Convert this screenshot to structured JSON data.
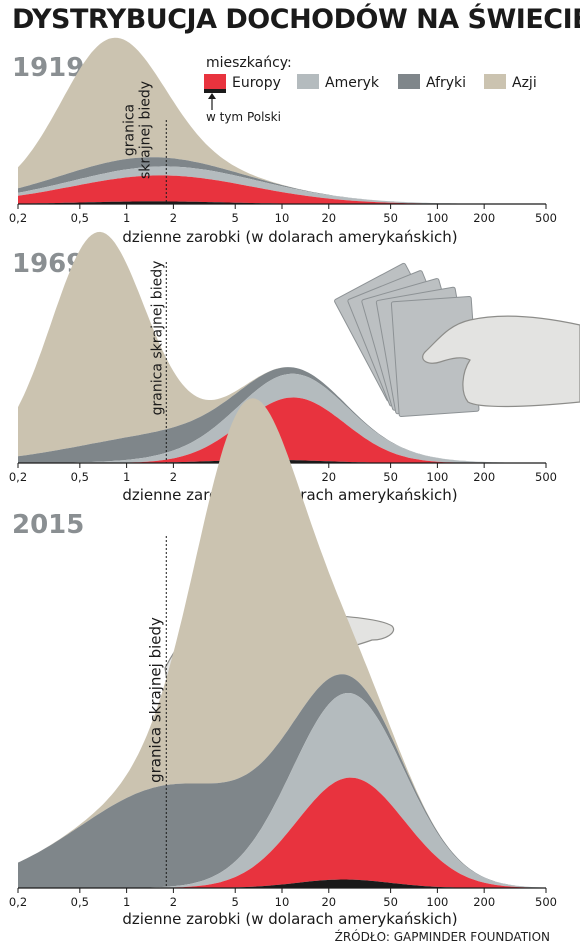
{
  "title": "DYSTRYBUCJA DOCHODÓW NA ŚWIECIE",
  "source": "ŹRÓDŁO: GAPMINDER FOUNDATION",
  "legend": {
    "heading": "mieszkańcy:",
    "items": [
      {
        "label": "Europy",
        "color": "#e8333e"
      },
      {
        "label": "Ameryk",
        "color": "#b4bbbe"
      },
      {
        "label": "Afryki",
        "color": "#7f868a"
      },
      {
        "label": "Azji",
        "color": "#cbc3b0"
      }
    ],
    "poland_note": "w tym Polski",
    "poland_color": "#1a1a1a"
  },
  "poverty_line_label": "granica skrajnej biedy",
  "chart_data": [
    {
      "type": "area",
      "year": "1919",
      "xlabel": "dzienne zarobki (w dolarach amerykańskich)",
      "xscale": "log",
      "xlim": [
        0.2,
        500
      ],
      "xticks": [
        "0,2",
        "0,5",
        "1",
        "2",
        "5",
        "10",
        "20",
        "50",
        "100",
        "200",
        "500"
      ],
      "xtick_values": [
        0.2,
        0.5,
        1,
        2,
        5,
        10,
        20,
        50,
        100,
        200,
        500
      ],
      "poverty_line": 1.8,
      "stacking_order": [
        "Polski",
        "Europy",
        "Ameryk",
        "Afryki",
        "Azji"
      ],
      "series": [
        {
          "name": "Polski",
          "peak_x": 1.5,
          "peak_y": 2,
          "spread": 0.45
        },
        {
          "name": "Europy",
          "peak_x": 1.7,
          "peak_y": 20,
          "spread": 0.6
        },
        {
          "name": "Ameryk",
          "peak_x": 2.2,
          "peak_y": 7,
          "spread": 0.7
        },
        {
          "name": "Afryki",
          "peak_x": 0.9,
          "peak_y": 8,
          "spread": 0.5
        },
        {
          "name": "Azji",
          "peak_x": 0.8,
          "peak_y": 95,
          "spread": 0.32
        }
      ]
    },
    {
      "type": "area",
      "year": "1969",
      "xlabel": "dzienne zarobki (w dolarach amerykańskich)",
      "xscale": "log",
      "xlim": [
        0.2,
        500
      ],
      "xticks": [
        "0,2",
        "0,5",
        "1",
        "2",
        "5",
        "10",
        "20",
        "50",
        "100",
        "200",
        "500"
      ],
      "xtick_values": [
        0.2,
        0.5,
        1,
        2,
        5,
        10,
        20,
        50,
        100,
        200,
        500
      ],
      "poverty_line": 1.8,
      "stacking_order": [
        "Polski",
        "Europy",
        "Ameryk",
        "Afryki",
        "Azji"
      ],
      "series": [
        {
          "name": "Polski",
          "peak_x": 8,
          "peak_y": 3,
          "spread": 0.35
        },
        {
          "name": "Europy",
          "peak_x": 12,
          "peak_y": 58,
          "spread": 0.33
        },
        {
          "name": "Ameryk",
          "peak_x": 11,
          "peak_y": 22,
          "spread": 0.5
        },
        {
          "name": "Afryki",
          "peak_x": 1.5,
          "peak_y": 22,
          "spread": 0.55
        },
        {
          "name": "Azji",
          "peak_x": 0.65,
          "peak_y": 195,
          "spread": 0.3
        }
      ]
    },
    {
      "type": "area",
      "year": "2015",
      "xlabel": "dzienne zarobki (w dolarach amerykańskich)",
      "xscale": "log",
      "xlim": [
        0.2,
        500
      ],
      "xticks": [
        "0,2",
        "0,5",
        "1",
        "2",
        "5",
        "10",
        "20",
        "50",
        "100",
        "200",
        "500"
      ],
      "xtick_values": [
        0.2,
        0.5,
        1,
        2,
        5,
        10,
        20,
        50,
        100,
        200,
        500
      ],
      "poverty_line": 1.8,
      "stacking_order": [
        "Polski",
        "Europy",
        "Ameryk",
        "Afryki",
        "Azji"
      ],
      "series": [
        {
          "name": "Polski",
          "peak_x": 25,
          "peak_y": 5,
          "spread": 0.3
        },
        {
          "name": "Europy",
          "peak_x": 28,
          "peak_y": 60,
          "spread": 0.35
        },
        {
          "name": "Ameryk",
          "peak_x": 25,
          "peak_y": 50,
          "spread": 0.38
        },
        {
          "name": "Afryki",
          "peak_x": 2,
          "peak_y": 60,
          "spread": 0.6
        },
        {
          "name": "Azji",
          "peak_x": 6,
          "peak_y": 220,
          "spread": 0.33
        }
      ]
    }
  ]
}
